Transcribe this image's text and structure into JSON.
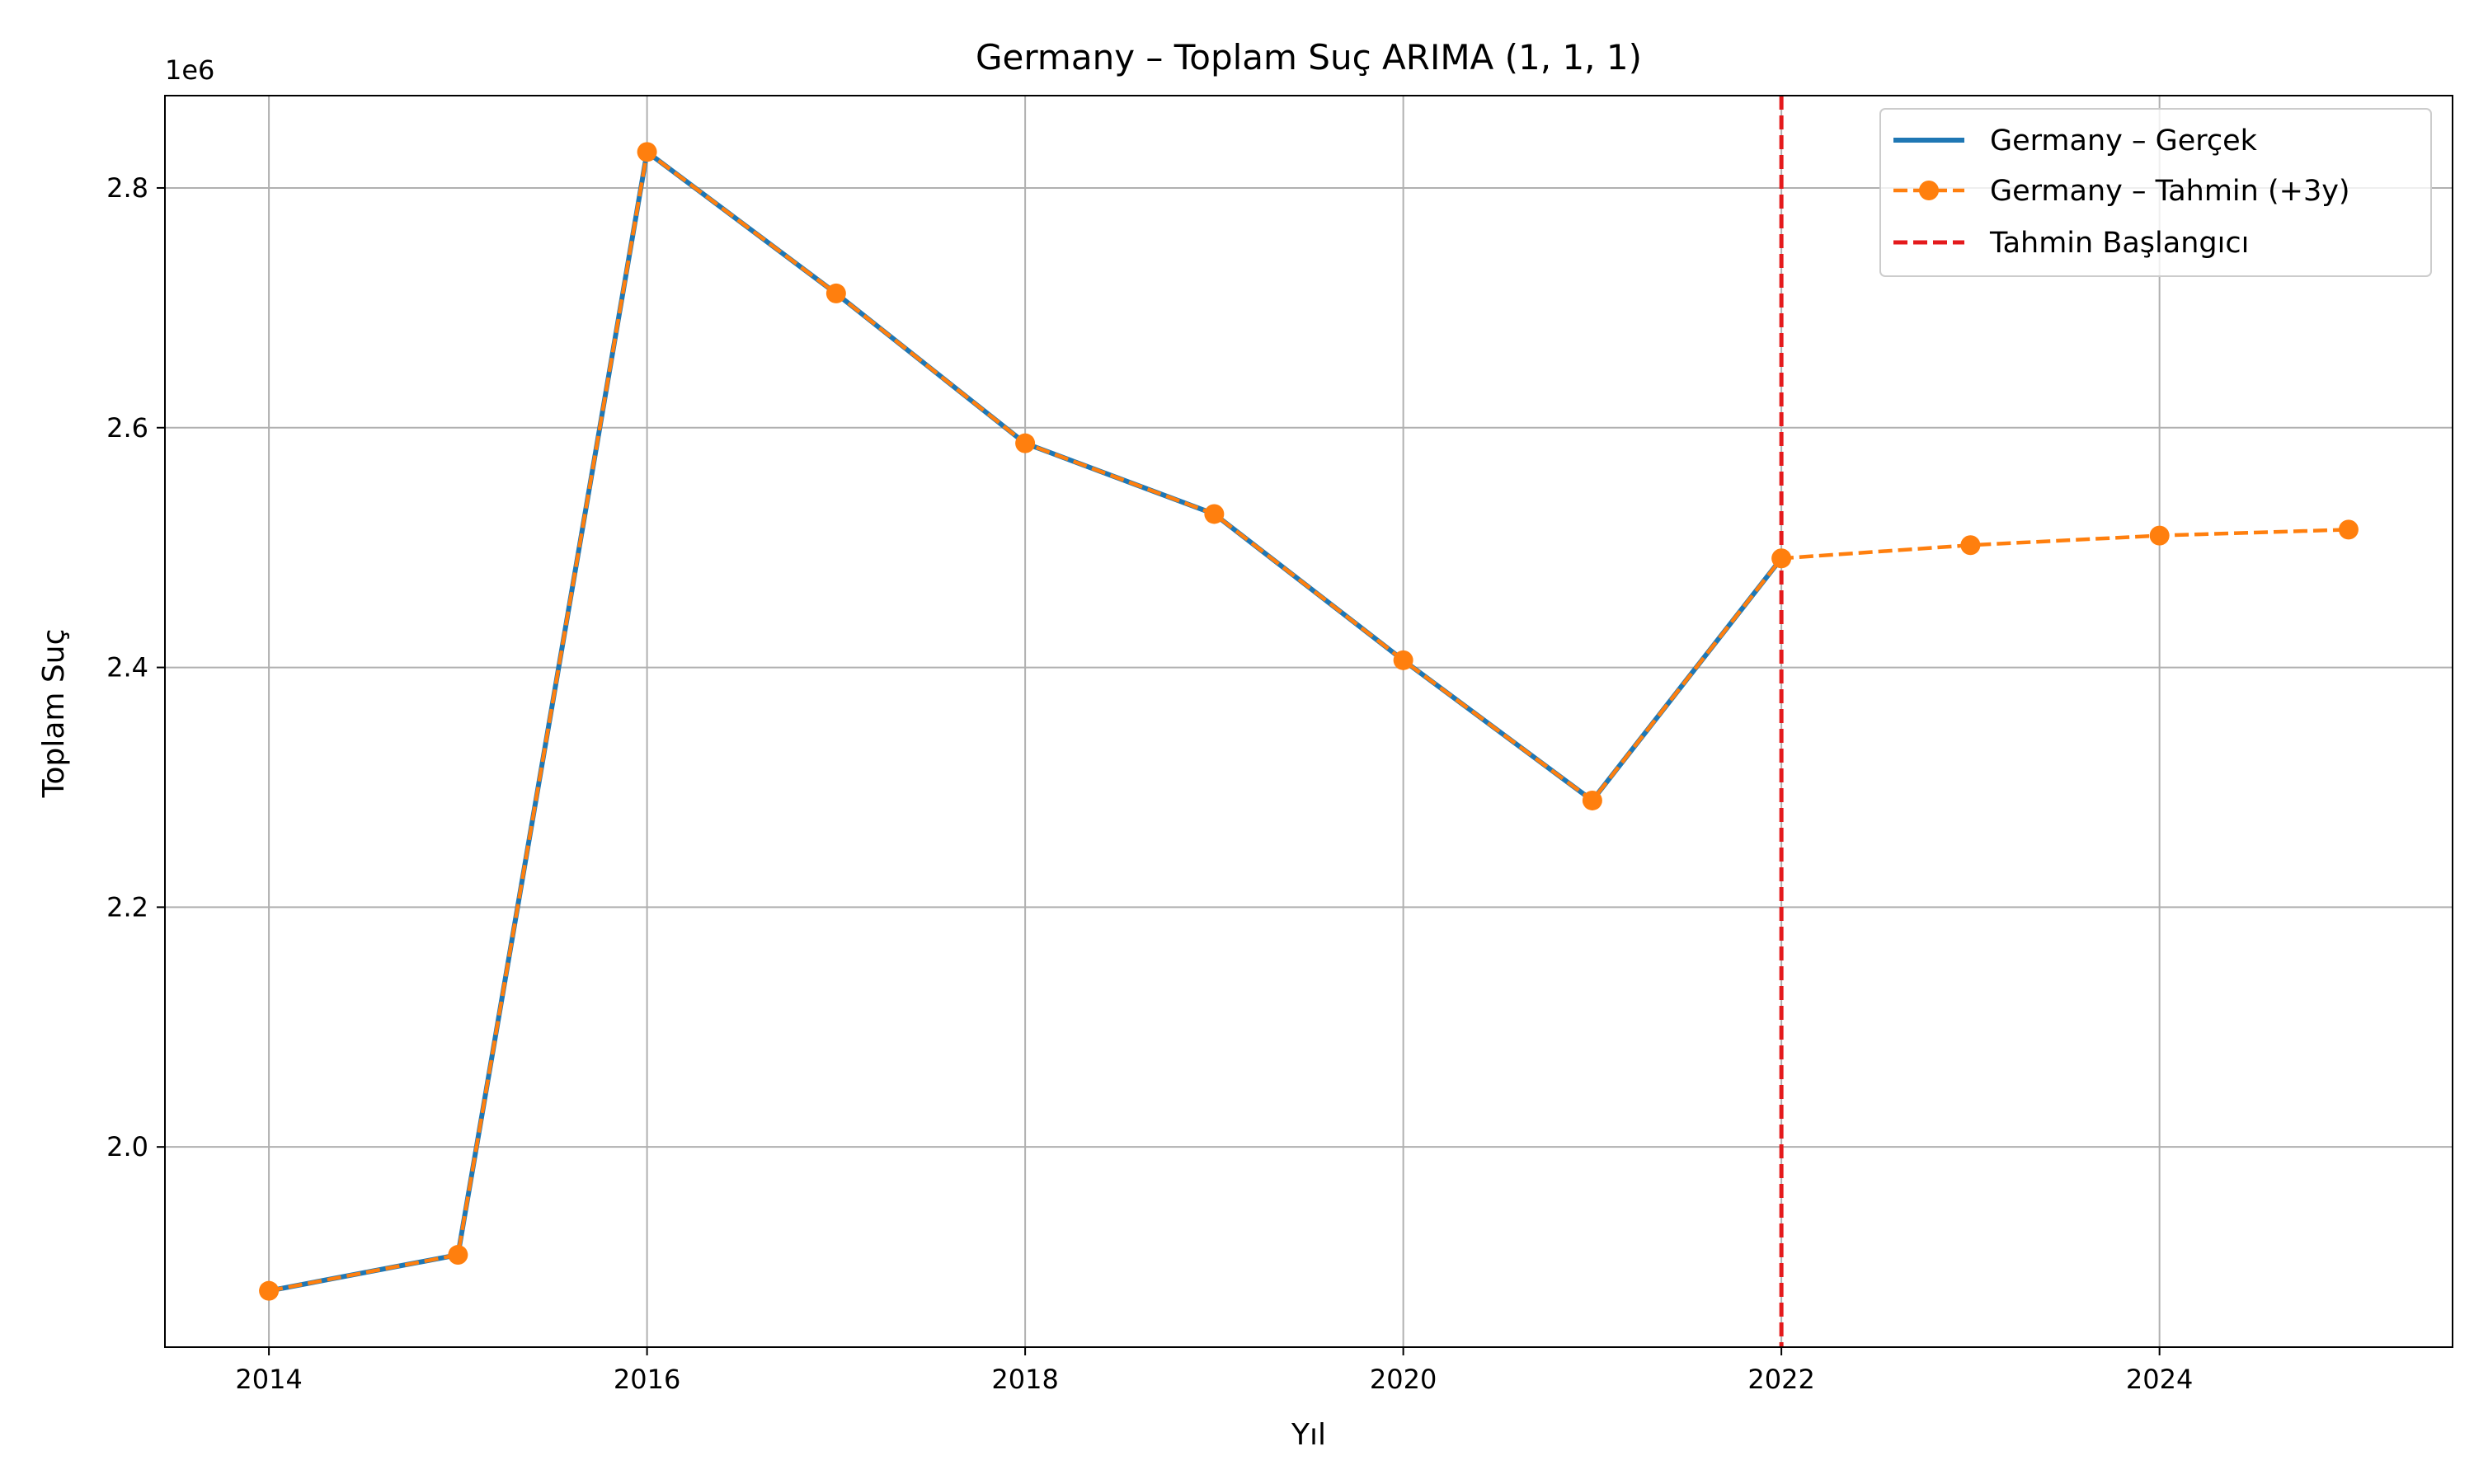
{
  "chart_data": {
    "type": "line",
    "title": "Germany – Toplam Suç ARIMA (1, 1, 1)",
    "xlabel": "Yıl",
    "ylabel": "Toplam Suç",
    "y_multiplier_label": "1e6",
    "xlim": [
      2013.45,
      2025.55
    ],
    "ylim": [
      1.833,
      2.877
    ],
    "x_ticks": [
      2014,
      2016,
      2018,
      2020,
      2022,
      2024
    ],
    "y_ticks": [
      2.0,
      2.2,
      2.4,
      2.6,
      2.8
    ],
    "y_tick_labels": [
      "2.0",
      "2.2",
      "2.4",
      "2.6",
      "2.8"
    ],
    "grid": true,
    "legend_position": "top-right",
    "series": [
      {
        "name": "Germany – Gerçek",
        "style": "solid",
        "color": "#1f77b4",
        "x": [
          2014,
          2015,
          2016,
          2017,
          2018,
          2019,
          2020,
          2021,
          2022
        ],
        "y": [
          1.88,
          1.91,
          2.83,
          2.712,
          2.587,
          2.528,
          2.406,
          2.289,
          2.491
        ]
      },
      {
        "name": "Germany – Tahmin (+3y)",
        "style": "dashed-markers",
        "color": "#ff7f0e",
        "x": [
          2014,
          2015,
          2016,
          2017,
          2018,
          2019,
          2020,
          2021,
          2022,
          2023,
          2024,
          2025
        ],
        "y": [
          1.88,
          1.91,
          2.83,
          2.712,
          2.587,
          2.528,
          2.406,
          2.289,
          2.491,
          2.502,
          2.51,
          2.515
        ]
      }
    ],
    "vline": {
      "name": "Tahmin Başlangıcı",
      "x": 2022,
      "color": "#e41a1c",
      "style": "dashed"
    }
  }
}
